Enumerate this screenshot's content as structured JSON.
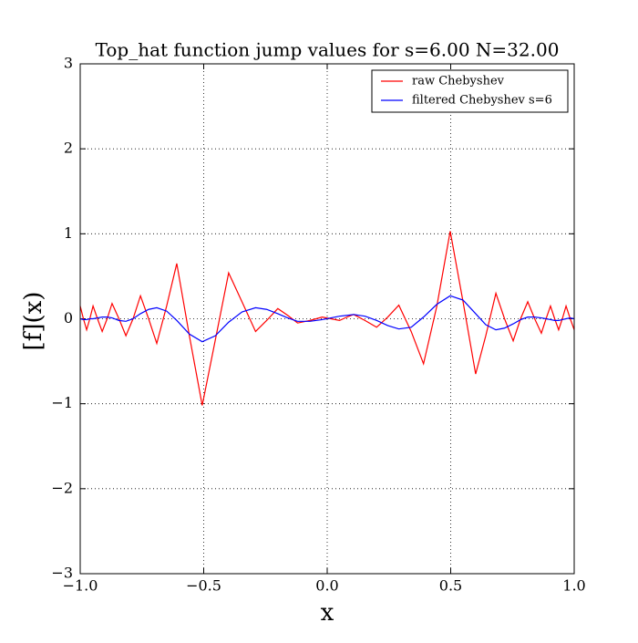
{
  "chart_data": {
    "type": "line",
    "title": "Top_hat function jump values for s=6.00 N=32.00",
    "x_label": "x",
    "y_label": "[f](x)",
    "x": [
      -1,
      -0.987,
      -0.974,
      -0.961,
      -0.948,
      -0.93,
      -0.911,
      -0.891,
      -0.871,
      -0.843,
      -0.815,
      -0.786,
      -0.756,
      -0.723,
      -0.69,
      -0.65,
      -0.609,
      -0.558,
      -0.506,
      -0.453,
      -0.399,
      -0.345,
      -0.29,
      -0.245,
      -0.2,
      -0.16,
      -0.12,
      -0.07,
      -0.02,
      0.015,
      0.05,
      0.08,
      0.107,
      0.153,
      0.2,
      0.245,
      0.29,
      0.34,
      0.39,
      0.444,
      0.498,
      0.55,
      0.601,
      0.642,
      0.683,
      0.718,
      0.753,
      0.783,
      0.812,
      0.84,
      0.867,
      0.886,
      0.904,
      0.921,
      0.937,
      0.952,
      0.967,
      0.984,
      1.0
    ],
    "series": [
      {
        "name": "raw Chebyshev",
        "color": "#ff0000",
        "values": [
          0.15,
          0,
          -0.13,
          0,
          0.15,
          0,
          -0.15,
          0,
          0.18,
          0,
          -0.2,
          0,
          0.27,
          0,
          -0.29,
          0.15,
          0.65,
          -0.2,
          -1.02,
          -0.25,
          0.54,
          0.2,
          -0.15,
          -0.02,
          0.12,
          0.04,
          -0.05,
          -0.02,
          0.02,
          0,
          -0.02,
          0.02,
          0.05,
          -0.02,
          -0.1,
          0.02,
          0.16,
          -0.15,
          -0.53,
          0.15,
          1.03,
          0.2,
          -0.65,
          -0.2,
          0.3,
          0,
          -0.26,
          0,
          0.2,
          0,
          -0.17,
          0,
          0.15,
          0,
          -0.13,
          0,
          0.15,
          0,
          -0.13
        ]
      },
      {
        "name": "filtered Chebyshev s=6",
        "color": "#0000ff",
        "values": [
          0,
          -0.01,
          -0.01,
          0,
          0,
          0.01,
          0.02,
          0.02,
          0.01,
          -0.02,
          -0.03,
          0,
          0.06,
          0.11,
          0.13,
          0.09,
          -0.02,
          -0.18,
          -0.27,
          -0.2,
          -0.04,
          0.08,
          0.13,
          0.11,
          0.06,
          0.01,
          -0.03,
          -0.03,
          -0.01,
          0.01,
          0.03,
          0.04,
          0.05,
          0.03,
          -0.02,
          -0.08,
          -0.12,
          -0.1,
          0.02,
          0.17,
          0.27,
          0.22,
          0.06,
          -0.07,
          -0.13,
          -0.11,
          -0.06,
          -0.01,
          0.02,
          0.02,
          0.01,
          0,
          -0.01,
          -0.02,
          -0.02,
          -0.01,
          0,
          0.01,
          0
        ]
      }
    ],
    "xlim": [
      -1,
      1
    ],
    "ylim": [
      -3,
      3
    ],
    "xticks": [
      {
        "value": -1,
        "label": "−1.0"
      },
      {
        "value": -0.5,
        "label": "−0.5"
      },
      {
        "value": 0,
        "label": "0.0"
      },
      0.5,
      {
        "value": 1,
        "label": "1.0"
      }
    ],
    "yticks": [
      {
        "value": -3,
        "label": "−3"
      },
      {
        "value": -2,
        "label": "−2"
      },
      {
        "value": -1,
        "label": "−1"
      },
      0,
      1,
      2,
      3
    ],
    "grid": true,
    "legend_position": "upper right"
  }
}
